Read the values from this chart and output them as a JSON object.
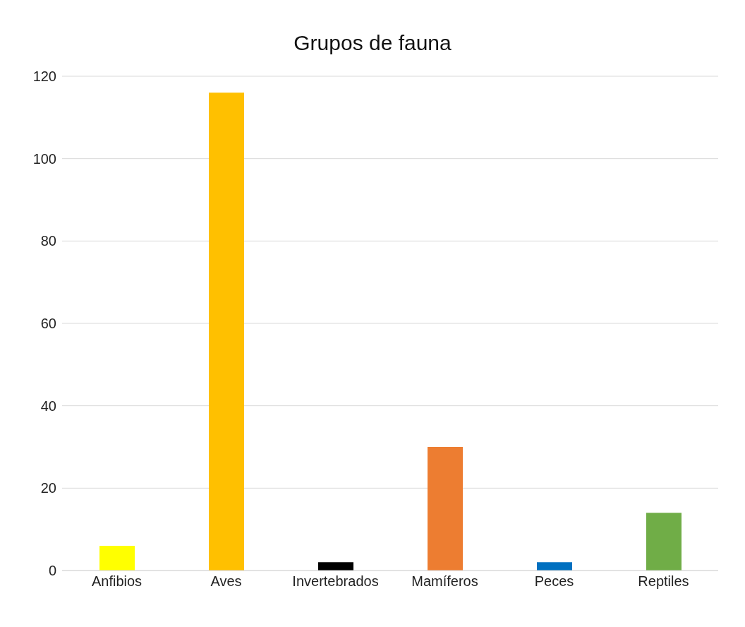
{
  "chart_data": {
    "type": "bar",
    "title": "Grupos de fauna",
    "categories": [
      "Anfibios",
      "Aves",
      "Invertebrados",
      "Mamíferos",
      "Peces",
      "Reptiles"
    ],
    "values": [
      6,
      116,
      2,
      30,
      2,
      14
    ],
    "colors": [
      "#ffff00",
      "#ffc000",
      "#000000",
      "#ed7d31",
      "#0070c0",
      "#70ad47"
    ],
    "ylim": [
      0,
      120
    ],
    "yticks": [
      0,
      20,
      40,
      60,
      80,
      100,
      120
    ],
    "grid": "y"
  }
}
